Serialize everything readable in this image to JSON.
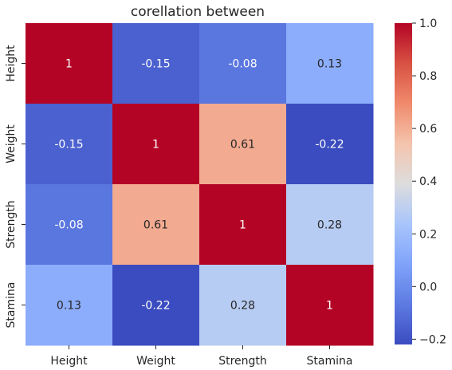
{
  "chart_data": {
    "type": "heatmap",
    "title": "corellation between",
    "x_labels": [
      "Height",
      "Weight",
      "Strength",
      "Stamina"
    ],
    "y_labels": [
      "Height",
      "Weight",
      "Strength",
      "Stamina"
    ],
    "values": [
      [
        1,
        -0.15,
        -0.08,
        0.13
      ],
      [
        -0.15,
        1,
        0.61,
        -0.22
      ],
      [
        -0.08,
        0.61,
        1,
        0.28
      ],
      [
        0.13,
        -0.22,
        0.28,
        1
      ]
    ],
    "cell_labels": [
      [
        "1",
        "-0.15",
        "-0.08",
        "0.13"
      ],
      [
        "-0.15",
        "1",
        "0.61",
        "-0.22"
      ],
      [
        "-0.08",
        "0.61",
        "1",
        "0.28"
      ],
      [
        "0.13",
        "-0.22",
        "0.28",
        "1"
      ]
    ],
    "colormap": "coolwarm",
    "vmin": -0.22,
    "vmax": 1.0,
    "colorbar_ticks": [
      -0.2,
      0.0,
      0.2,
      0.4,
      0.6,
      0.8,
      1.0
    ],
    "colorbar_tick_labels": [
      "−0.2",
      "0.0",
      "0.2",
      "0.4",
      "0.6",
      "0.8",
      "1.0"
    ]
  }
}
